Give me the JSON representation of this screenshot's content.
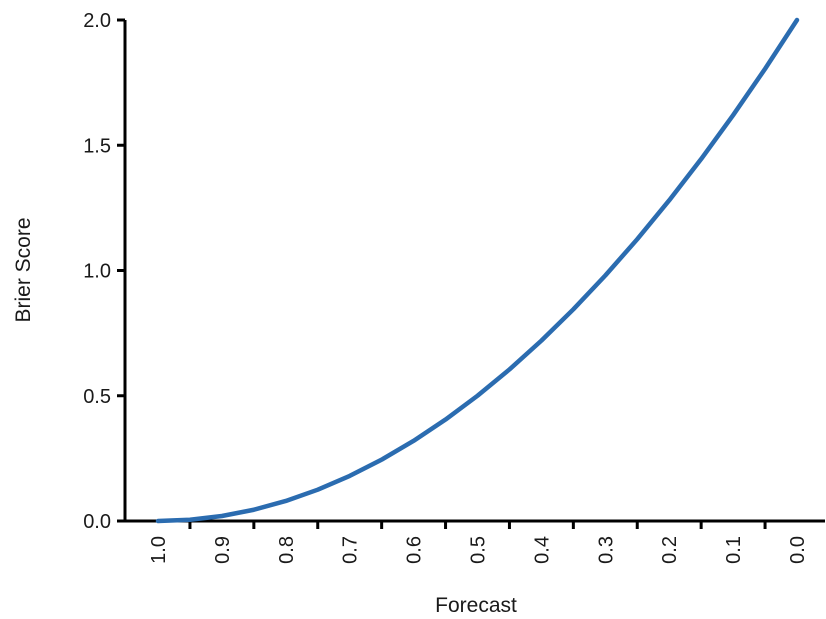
{
  "chart_data": {
    "type": "line",
    "title": "",
    "xlabel": "Forecast",
    "ylabel": "Brier Score",
    "x_axis_reversed": true,
    "xlim": [
      1.0,
      0.0
    ],
    "ylim": [
      0.0,
      2.0
    ],
    "x_ticks": [
      "1.0",
      "0.9",
      "0.8",
      "0.7",
      "0.6",
      "0.5",
      "0.4",
      "0.3",
      "0.2",
      "0.1",
      "0.0"
    ],
    "y_ticks": [
      "0.0",
      "0.5",
      "1.0",
      "1.5",
      "2.0"
    ],
    "grid": false,
    "legend": "none",
    "series": [
      {
        "color": "#2b6cb0",
        "x": [
          1.0,
          0.95,
          0.9,
          0.85,
          0.8,
          0.75,
          0.7,
          0.65,
          0.6,
          0.55,
          0.5,
          0.45,
          0.4,
          0.35,
          0.3,
          0.25,
          0.2,
          0.15,
          0.1,
          0.05,
          0.0
        ],
        "y": [
          0.0,
          0.005,
          0.02,
          0.045,
          0.08,
          0.125,
          0.18,
          0.245,
          0.32,
          0.405,
          0.5,
          0.605,
          0.72,
          0.845,
          0.98,
          1.125,
          1.28,
          1.445,
          1.62,
          1.805,
          2.0
        ]
      }
    ]
  }
}
